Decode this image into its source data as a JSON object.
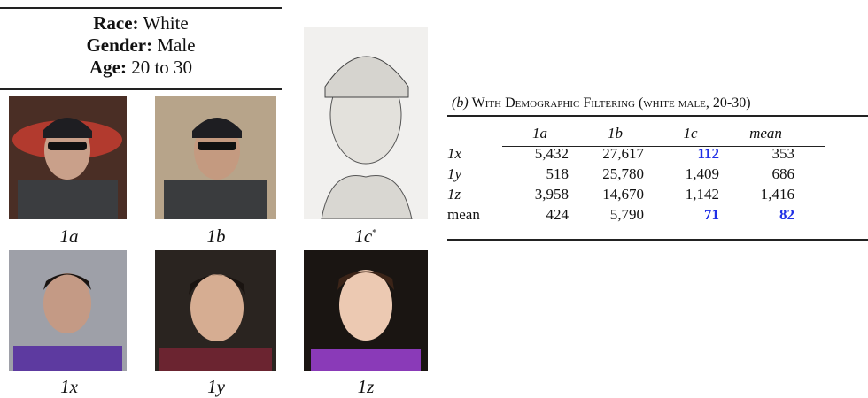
{
  "filter": {
    "items": [
      {
        "key": "Race:",
        "value": "White"
      },
      {
        "key": "Gender:",
        "value": "Male"
      },
      {
        "key": "Age:",
        "value": "20 to 30"
      }
    ]
  },
  "images": [
    {
      "label": "1a"
    },
    {
      "label": "1b"
    },
    {
      "label": "1c",
      "mark": "*"
    },
    {
      "label": "1x"
    },
    {
      "label": "1y"
    },
    {
      "label": "1z"
    }
  ],
  "table": {
    "label": "(b)",
    "title": "With Demographic Filtering (white male, 20-30)",
    "columns": [
      "1a",
      "1b",
      "1c",
      "mean"
    ],
    "rows": [
      [
        "1x",
        "5,432",
        "27,617",
        "112",
        "353"
      ],
      [
        "1y",
        "518",
        "25,780",
        "1,409",
        "686"
      ],
      [
        "1z",
        "3,958",
        "14,670",
        "1,142",
        "1,416"
      ],
      [
        "mean",
        "424",
        "5,790",
        "71",
        "82"
      ]
    ],
    "highlighted": [
      [
        0,
        3
      ],
      [
        3,
        3
      ],
      [
        3,
        4
      ]
    ],
    "highlight_color": "#1f2fe6"
  }
}
